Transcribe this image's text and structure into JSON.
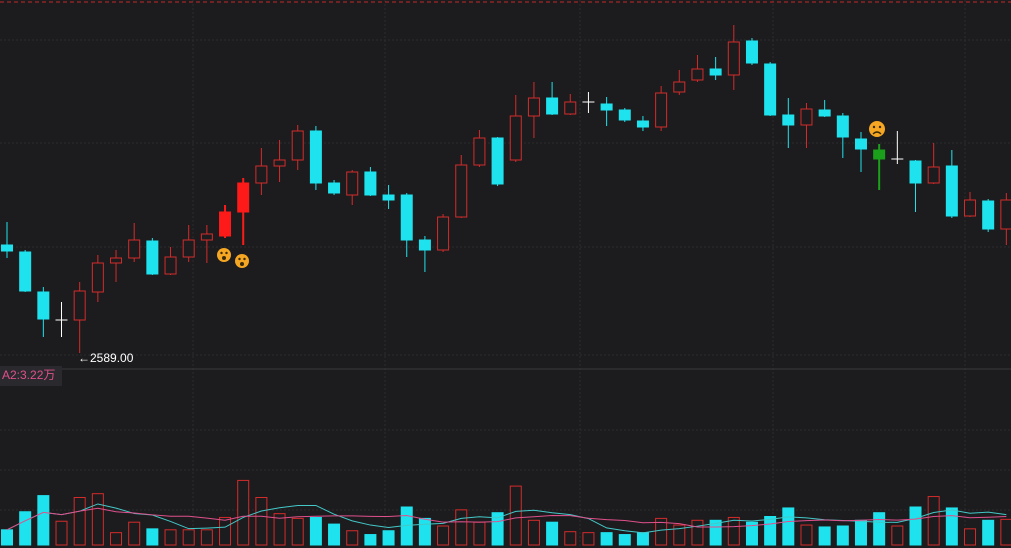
{
  "chart_data": {
    "type": "candlestick",
    "low_label": "←2589.00",
    "indicator_label": "A2:3.22万",
    "ylim": [
      2577,
      2942
    ],
    "y2lim": [
      0,
      16
    ],
    "open": [
      2697,
      2690,
      2650,
      2622,
      2622,
      2650,
      2679,
      2684,
      2701,
      2668,
      2685,
      2702,
      2706,
      2730,
      2759,
      2776,
      2782,
      2811,
      2759,
      2747,
      2770,
      2747,
      2747,
      2702,
      2692,
      2725,
      2777,
      2804,
      2782,
      2826,
      2844,
      2828,
      2840,
      2838,
      2832,
      2821,
      2815,
      2850,
      2862,
      2873,
      2867,
      2901,
      2878,
      2827,
      2817,
      2832,
      2826,
      2803,
      2792,
      2783,
      2781,
      2759,
      2776,
      2726,
      2741,
      2713
    ],
    "close": [
      2691,
      2651,
      2623,
      2622,
      2651,
      2679,
      2684,
      2702,
      2668,
      2685,
      2702,
      2708,
      2730,
      2759,
      2776,
      2782,
      2811,
      2759,
      2749,
      2770,
      2747,
      2742,
      2702,
      2692,
      2725,
      2777,
      2804,
      2758,
      2826,
      2844,
      2828,
      2840,
      2840,
      2832,
      2822,
      2815,
      2849,
      2860,
      2873,
      2867,
      2900,
      2879,
      2827,
      2817,
      2833,
      2826,
      2805,
      2793,
      2783,
      2783,
      2759,
      2775,
      2726,
      2742,
      2713,
      2742
    ],
    "high": [
      2720,
      2692,
      2655,
      2640,
      2660,
      2687,
      2692,
      2719,
      2704,
      2695,
      2717,
      2717,
      2737,
      2764,
      2794,
      2802,
      2817,
      2816,
      2762,
      2772,
      2775,
      2757,
      2749,
      2706,
      2728,
      2787,
      2812,
      2805,
      2847,
      2860,
      2860,
      2848,
      2850,
      2845,
      2834,
      2826,
      2856,
      2872,
      2887,
      2885,
      2917,
      2904,
      2880,
      2844,
      2839,
      2842,
      2829,
      2810,
      2798,
      2811,
      2782,
      2799,
      2792,
      2750,
      2743,
      2749
    ],
    "low": [
      2684,
      2650,
      2605,
      2605,
      2589,
      2640,
      2660,
      2680,
      2667,
      2667,
      2680,
      2679,
      2704,
      2697,
      2747,
      2760,
      2772,
      2752,
      2747,
      2737,
      2746,
      2733,
      2685,
      2670,
      2690,
      2724,
      2775,
      2756,
      2780,
      2804,
      2827,
      2827,
      2829,
      2816,
      2820,
      2811,
      2811,
      2847,
      2860,
      2862,
      2852,
      2877,
      2826,
      2794,
      2794,
      2825,
      2784,
      2770,
      2752,
      2778,
      2730,
      2758,
      2724,
      2725,
      2710,
      2697
    ],
    "volume": [
      1.6,
      3.5,
      5.2,
      2.5,
      5.0,
      5.4,
      1.3,
      2.4,
      1.7,
      1.6,
      1.6,
      1.6,
      2.9,
      6.8,
      5.0,
      3.3,
      2.8,
      2.9,
      2.2,
      1.5,
      1.1,
      1.5,
      4.0,
      2.8,
      2.0,
      3.7,
      2.4,
      3.4,
      6.2,
      2.6,
      2.4,
      1.4,
      1.3,
      1.3,
      1.1,
      1.3,
      2.8,
      2.1,
      2.6,
      2.6,
      2.9,
      2.4,
      3.0,
      3.9,
      2.1,
      1.9,
      2.0,
      2.6,
      3.4,
      2.0,
      4.0,
      5.1,
      3.9,
      1.7,
      2.6,
      2.7
    ],
    "up_color": "#d42b2b",
    "down_color": "#1ee3ee",
    "doji_color": "#ffffff",
    "highlight_colors": [
      {
        "index": 12,
        "color": "#ff1a1a"
      },
      {
        "index": 13,
        "color": "#ff1a1a"
      },
      {
        "index": 48,
        "color": "#1aa01a"
      }
    ],
    "ma_lines": [
      {
        "period": 5,
        "color": "#44c8c8"
      },
      {
        "period": 10,
        "color": "#e0508c"
      }
    ]
  }
}
